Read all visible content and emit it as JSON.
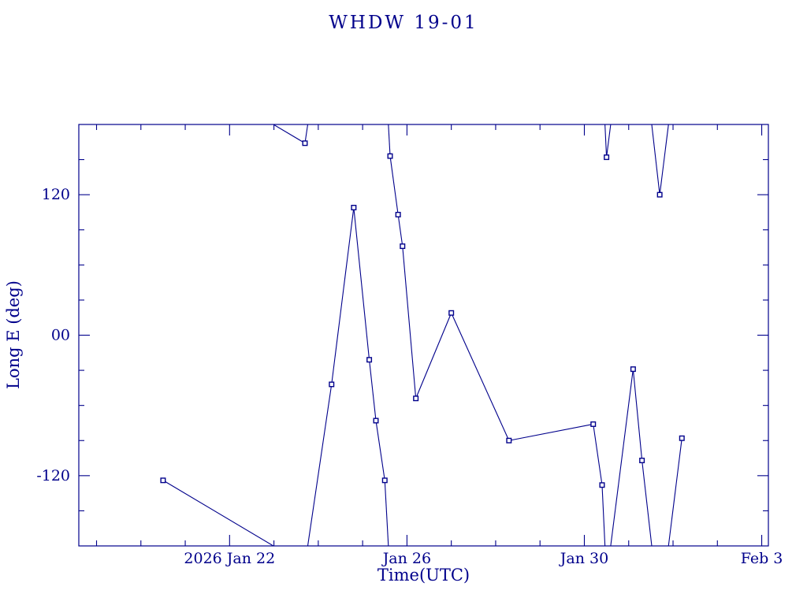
{
  "colors": {
    "accent": "#00008B",
    "background": "#FFFFFF"
  },
  "chart_data": {
    "type": "line",
    "title": "WHDW 19-01",
    "xlabel": "Time(UTC)",
    "ylabel": "Long E (deg)",
    "x_encoding": "day number within 2026 Jan (Feb 3 = 34)",
    "xlim": [
      18.6,
      34.15
    ],
    "ylim": [
      -180,
      180
    ],
    "wrap": 360,
    "grid": false,
    "legend": "none",
    "marker": "open-square",
    "x_minor_step": 1,
    "y_minor_step": 30,
    "x_ticks": [
      {
        "value": 22,
        "label": "2026 Jan 22"
      },
      {
        "value": 26,
        "label": "Jan 26"
      },
      {
        "value": 30,
        "label": "Jan 30"
      },
      {
        "value": 34,
        "label": "Feb  3"
      }
    ],
    "y_ticks": [
      {
        "value": 120,
        "label": "120"
      },
      {
        "value": 0,
        "label": "00"
      },
      {
        "value": -120,
        "label": "-120"
      }
    ],
    "points": [
      {
        "x": 20.5,
        "y": -124
      },
      {
        "x": 23.7,
        "y": 164
      },
      {
        "x": 24.3,
        "y": -42
      },
      {
        "x": 24.8,
        "y": 109
      },
      {
        "x": 25.15,
        "y": -21
      },
      {
        "x": 25.3,
        "y": -73
      },
      {
        "x": 25.5,
        "y": -124
      },
      {
        "x": 25.62,
        "y": 153
      },
      {
        "x": 25.8,
        "y": 103
      },
      {
        "x": 25.9,
        "y": 76
      },
      {
        "x": 26.2,
        "y": -54
      },
      {
        "x": 27.0,
        "y": 19
      },
      {
        "x": 28.3,
        "y": -90
      },
      {
        "x": 30.2,
        "y": -76
      },
      {
        "x": 30.4,
        "y": -128
      },
      {
        "x": 30.5,
        "y": 152
      },
      {
        "x": 31.1,
        "y": -29
      },
      {
        "x": 31.3,
        "y": -107
      },
      {
        "x": 31.7,
        "y": 120
      },
      {
        "x": 32.2,
        "y": -88
      }
    ]
  }
}
